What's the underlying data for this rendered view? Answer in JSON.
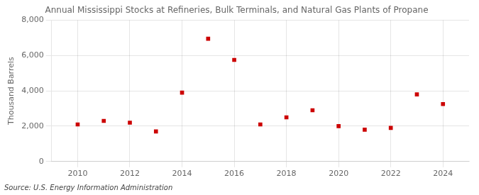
{
  "chart_data": {
    "type": "scatter",
    "title": "Annual Mississippi Stocks at Refineries, Bulk Terminals, and Natural Gas Plants of Propane",
    "ylabel": "Thousand Barrels",
    "source": "Source: U.S. Energy Information Administration",
    "x": [
      2010,
      2011,
      2012,
      2013,
      2014,
      2015,
      2016,
      2017,
      2018,
      2019,
      2020,
      2021,
      2022,
      2023,
      2024
    ],
    "values": [
      2100,
      2300,
      2200,
      1700,
      3900,
      6950,
      5750,
      2100,
      2500,
      2900,
      2000,
      1800,
      1900,
      3800,
      3250
    ],
    "color": "#cc0000",
    "marker": "square",
    "xlim": [
      2009,
      2025
    ],
    "xticks": [
      2010,
      2012,
      2014,
      2016,
      2018,
      2020,
      2022,
      2024
    ],
    "ylim": [
      0,
      8000
    ],
    "yticks": [
      0,
      {
        "value": 2000,
        "label": "2,000"
      },
      {
        "value": 4000,
        "label": "4,000"
      },
      {
        "value": 6000,
        "label": "6,000"
      },
      {
        "value": 8000,
        "label": "8,000"
      }
    ],
    "grid": true
  }
}
